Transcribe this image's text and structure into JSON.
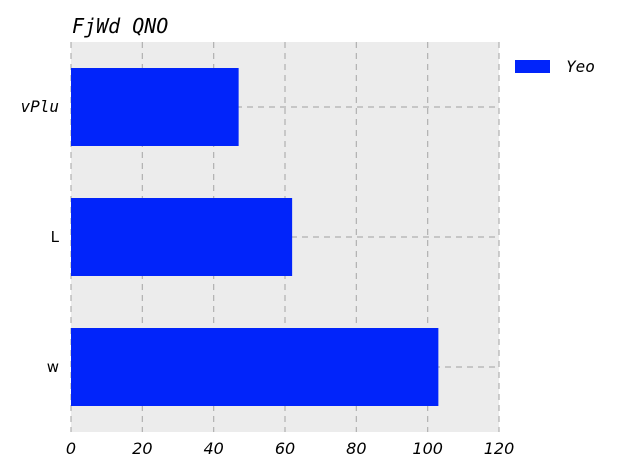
{
  "chart_data": {
    "type": "bar",
    "orientation": "horizontal",
    "title": "FjWd QNO",
    "xlabel": "",
    "ylabel": "",
    "categories": [
      "vPlu",
      "L",
      "w"
    ],
    "series": [
      {
        "name": "Yeo",
        "values": [
          47,
          62,
          103
        ],
        "color": "#0124fa"
      }
    ],
    "xlim": [
      0,
      120
    ],
    "xticks": [
      0,
      20,
      40,
      60,
      80,
      100,
      120
    ],
    "grid": true,
    "legend_position": "outside-top-right",
    "background": "#ececec"
  }
}
